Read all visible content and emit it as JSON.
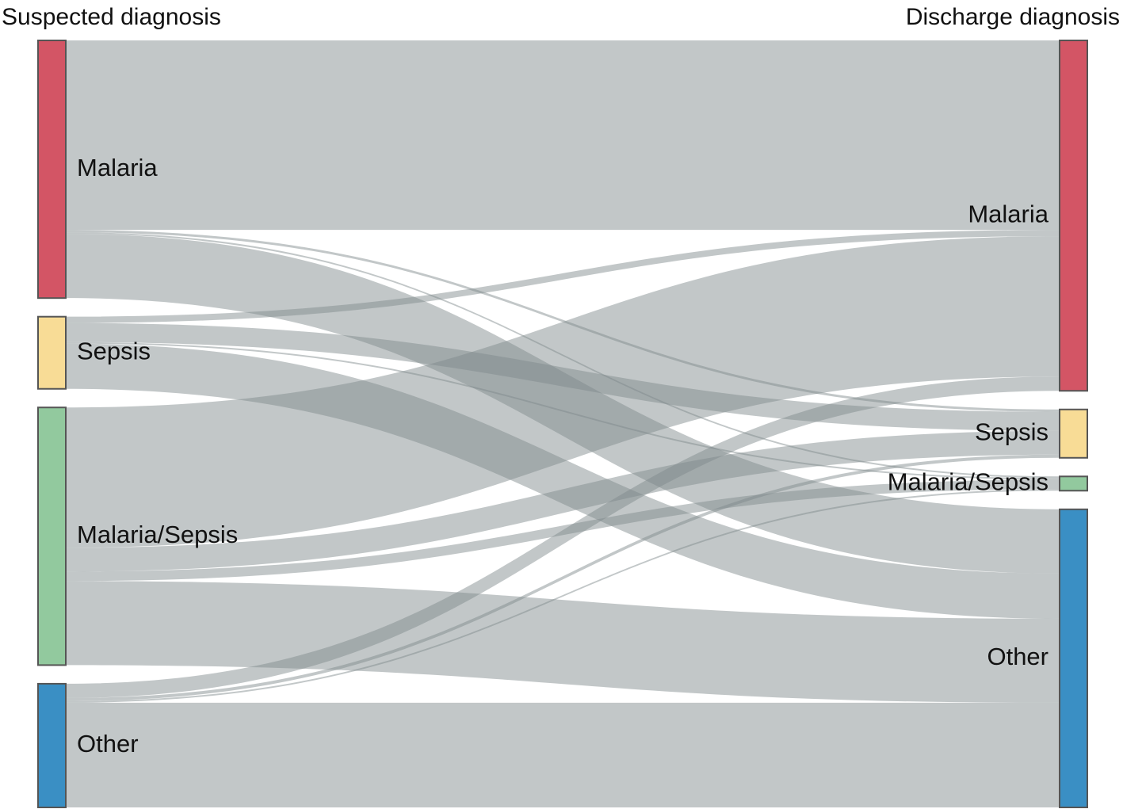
{
  "titles": {
    "left": "Suspected diagnosis",
    "right": "Discharge diagnosis"
  },
  "nodes": {
    "left": [
      {
        "id": "malaria",
        "label": "Malaria",
        "color": "#d35565"
      },
      {
        "id": "sepsis",
        "label": "Sepsis",
        "color": "#f8dc96"
      },
      {
        "id": "malsep",
        "label": "Malaria/Sepsis",
        "color": "#92c99e"
      },
      {
        "id": "other",
        "label": "Other",
        "color": "#3a8fc4"
      }
    ],
    "right": [
      {
        "id": "malaria",
        "label": "Malaria",
        "color": "#d35565"
      },
      {
        "id": "sepsis",
        "label": "Sepsis",
        "color": "#f8dc96"
      },
      {
        "id": "malsep",
        "label": "Malaria/Sepsis",
        "color": "#92c99e"
      },
      {
        "id": "other",
        "label": "Other",
        "color": "#3a8fc4"
      }
    ]
  },
  "flows": [
    {
      "from": "malaria",
      "to": "malaria",
      "value": 239
    },
    {
      "from": "malaria",
      "to": "sepsis",
      "value": 3
    },
    {
      "from": "malaria",
      "to": "malsep",
      "value": 2
    },
    {
      "from": "malaria",
      "to": "other",
      "value": 81
    },
    {
      "from": "sepsis",
      "to": "malaria",
      "value": 8
    },
    {
      "from": "sepsis",
      "to": "sepsis",
      "value": 24
    },
    {
      "from": "sepsis",
      "to": "malsep",
      "value": 2
    },
    {
      "from": "sepsis",
      "to": "other",
      "value": 57
    },
    {
      "from": "malsep",
      "to": "malaria",
      "value": 177
    },
    {
      "from": "malsep",
      "to": "sepsis",
      "value": 30
    },
    {
      "from": "malsep",
      "to": "malsep",
      "value": 12
    },
    {
      "from": "malsep",
      "to": "other",
      "value": 106
    },
    {
      "from": "other",
      "to": "malaria",
      "value": 18
    },
    {
      "from": "other",
      "to": "sepsis",
      "value": 4
    },
    {
      "from": "other",
      "to": "malsep",
      "value": 2
    },
    {
      "from": "other",
      "to": "other",
      "value": 132
    }
  ]
}
